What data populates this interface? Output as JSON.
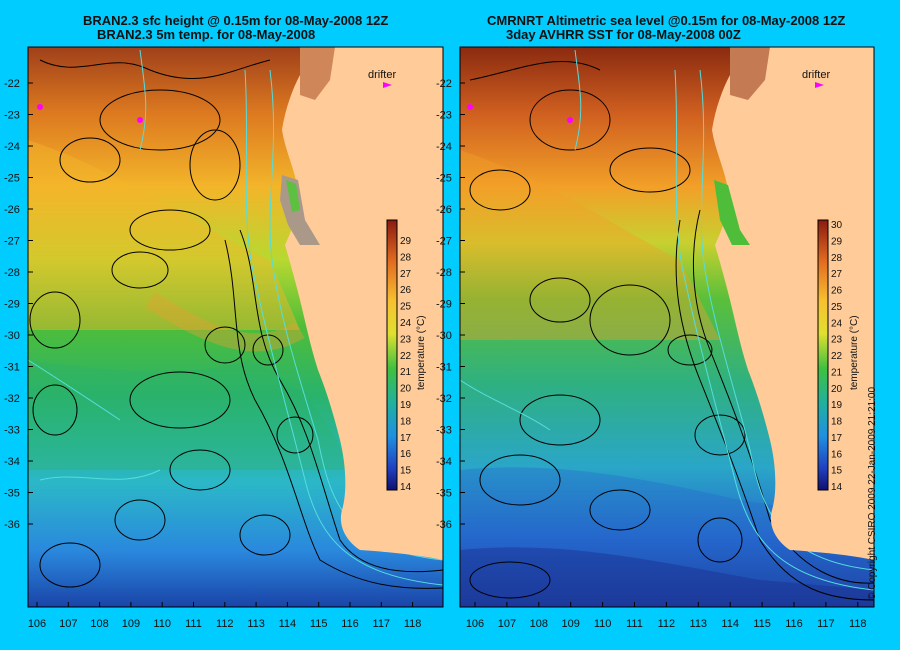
{
  "left_panel": {
    "title_line1": "BRAN2.3 sfc height @ 0.15m for 08-May-2008 12Z",
    "title_line2": "BRAN2.3 5m temp. for 08-May-2008",
    "drifter_label": "drifter"
  },
  "right_panel": {
    "title_line1": "CMRNRT Altimetric sea level  @0.15m  for 08-May-2008 12Z",
    "title_line2": "3day AVHRR SST for 08-May-2008 00Z",
    "drifter_label": "drifter"
  },
  "latitude_labels": [
    "-22",
    "-23",
    "-24",
    "-25",
    "-26",
    "-27",
    "-28",
    "-29",
    "-30",
    "-31",
    "-32",
    "-33",
    "-34",
    "-35",
    "-36"
  ],
  "longitude_labels": [
    "106",
    "107",
    "108",
    "109",
    "110",
    "111",
    "112",
    "113",
    "114",
    "115",
    "116",
    "117",
    "118"
  ],
  "colorbar": {
    "label": "temperature (°C)",
    "ticks": [
      "29",
      "28",
      "27",
      "26",
      "25",
      "24",
      "23",
      "22",
      "21",
      "20",
      "19",
      "18",
      "17",
      "16",
      "15",
      "14"
    ],
    "ticks_right": [
      "30",
      "29",
      "28",
      "27",
      "26",
      "25",
      "24",
      "23",
      "22",
      "21",
      "20",
      "19",
      "18",
      "17",
      "16",
      "15",
      "14"
    ]
  },
  "copyright": "© Copyright CSIRO 2009   22-Jan-2009 21:21:00",
  "colors": {
    "background": "#00ccff",
    "land": "#ffcc99",
    "drifter": "#ff00ff",
    "contour": "#000000",
    "isobath": "#55dddd"
  }
}
